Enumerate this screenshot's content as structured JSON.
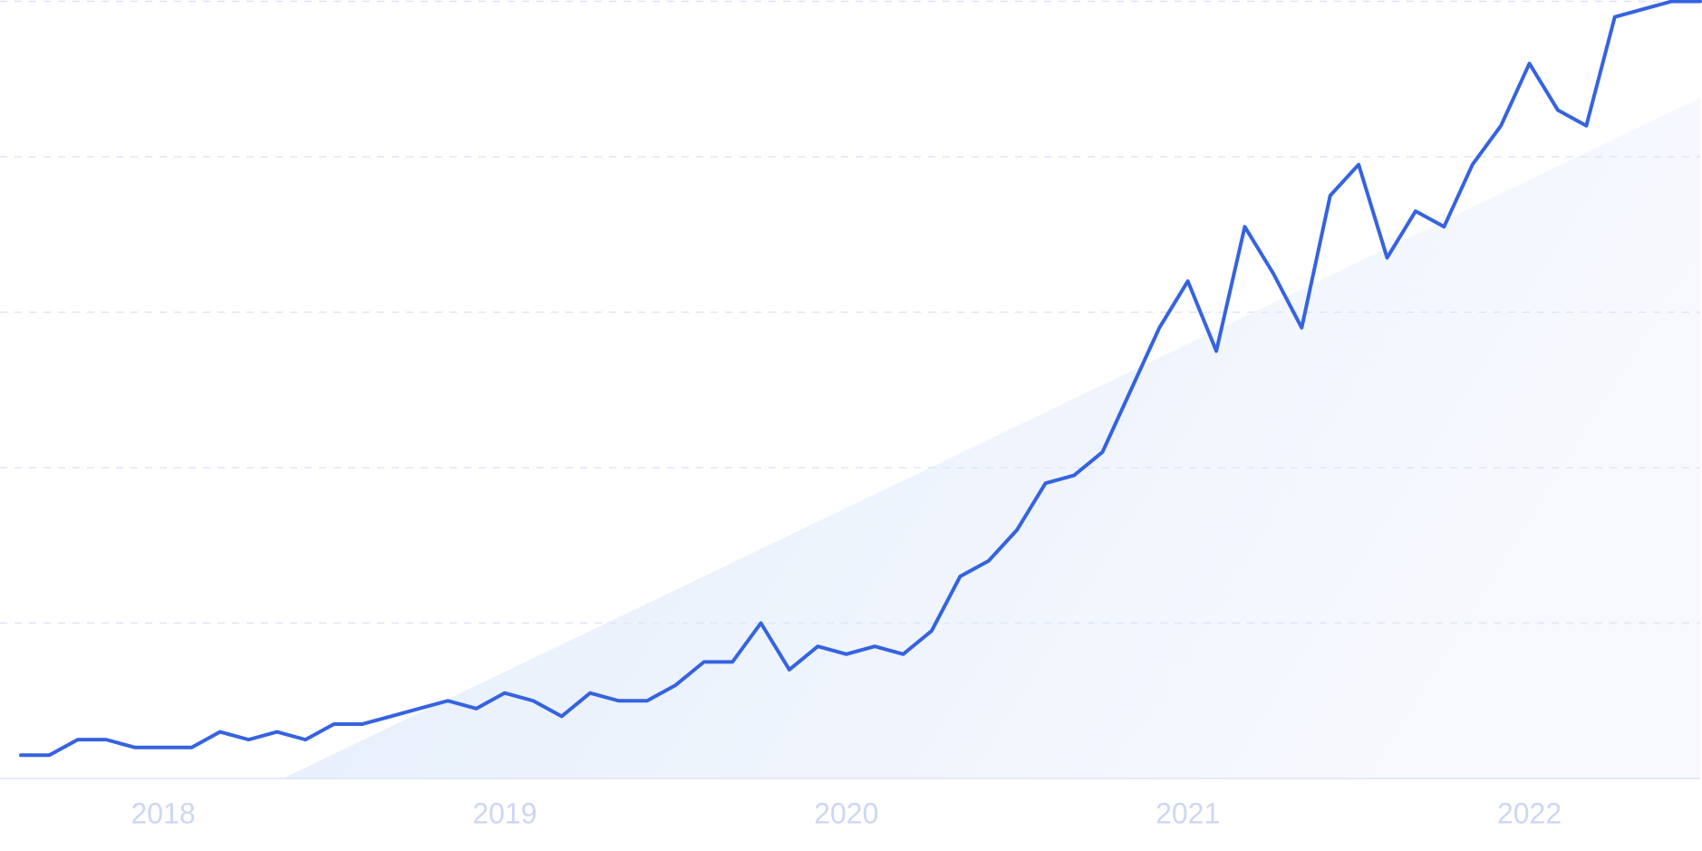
{
  "chart_data": {
    "type": "line",
    "categories": [
      null,
      null,
      null,
      null,
      null,
      "2018",
      null,
      null,
      null,
      null,
      null,
      null,
      null,
      null,
      null,
      null,
      null,
      "2019",
      null,
      null,
      null,
      null,
      null,
      null,
      null,
      null,
      null,
      null,
      null,
      "2020",
      null,
      null,
      null,
      null,
      null,
      null,
      null,
      null,
      null,
      null,
      null,
      "2021",
      null,
      null,
      null,
      null,
      null,
      null,
      null,
      null,
      null,
      null,
      null,
      "2022",
      null,
      null,
      null,
      null,
      null,
      null
    ],
    "series": [
      {
        "color": "#3563e0",
        "values": [
          3,
          3,
          5,
          5,
          4,
          4,
          4,
          6,
          5,
          6,
          5,
          7,
          7,
          8,
          9,
          10,
          9,
          11,
          10,
          8,
          11,
          10,
          10,
          12,
          15,
          15,
          20,
          14,
          17,
          16,
          17,
          16,
          19,
          26,
          28,
          32,
          38,
          39,
          42,
          50,
          58,
          64,
          55,
          71,
          65,
          58,
          75,
          79,
          67,
          73,
          71,
          79,
          84,
          92,
          86,
          84,
          98,
          99,
          100,
          100
        ]
      }
    ],
    "ylim": [
      0,
      100
    ],
    "yticks": [
      0,
      20,
      40,
      60,
      80,
      100
    ],
    "grid": true
  }
}
